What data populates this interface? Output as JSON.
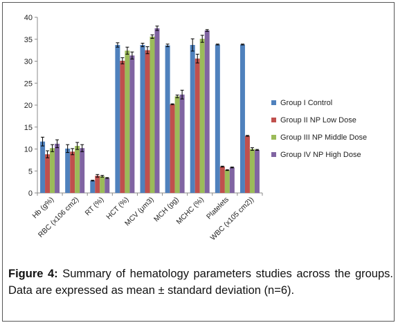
{
  "caption": {
    "label": "Figure 4:",
    "text": " Summary of hematology parameters studies across the groups. Data are expressed as mean ± standard deviation (n=6)."
  },
  "chart_data": {
    "type": "bar",
    "title": "",
    "xlabel": "",
    "ylabel": "",
    "ylim": [
      0,
      40
    ],
    "yticks": [
      0,
      5,
      10,
      15,
      20,
      25,
      30,
      35,
      40
    ],
    "grid": false,
    "legend_position": "right",
    "categories": [
      "Hb (g%)",
      "RBC (x106 cm2)",
      "RT (%)",
      "HCT (%)",
      "MCV (μm3)",
      "MCH (pg)",
      "MCHC (%)",
      "Platelets",
      "WBC (x105 cm2))"
    ],
    "series": [
      {
        "name": "Group I Control",
        "color": "#4f81bd",
        "values": [
          11.7,
          10.1,
          2.8,
          33.7,
          33.7,
          33.6,
          33.7,
          33.8,
          33.8
        ],
        "errors": [
          1.0,
          0.9,
          0.1,
          0.5,
          0.4,
          0.3,
          1.4,
          0.1,
          0.1
        ]
      },
      {
        "name": "Group II NP Low Dose",
        "color": "#c0504d",
        "values": [
          8.8,
          9.4,
          3.9,
          30.1,
          32.5,
          20.2,
          30.6,
          6.0,
          13.0
        ],
        "errors": [
          0.8,
          0.7,
          0.3,
          0.7,
          0.8,
          0.1,
          1.0,
          0.1,
          0.1
        ]
      },
      {
        "name": "Group III NP Middle Dose",
        "color": "#9bbb59",
        "values": [
          10.2,
          10.7,
          3.8,
          32.4,
          35.6,
          22.0,
          35.1,
          5.2,
          10.0
        ],
        "errors": [
          0.8,
          0.8,
          0.2,
          0.8,
          0.4,
          0.3,
          0.8,
          0.1,
          0.3
        ]
      },
      {
        "name": "Group IV NP High Dose",
        "color": "#8064a2",
        "values": [
          11.2,
          10.2,
          3.4,
          31.3,
          37.5,
          22.4,
          37.0,
          5.8,
          9.8
        ],
        "errors": [
          0.9,
          0.8,
          0.1,
          0.8,
          0.5,
          1.0,
          0.2,
          0.1,
          0.1
        ]
      }
    ]
  }
}
